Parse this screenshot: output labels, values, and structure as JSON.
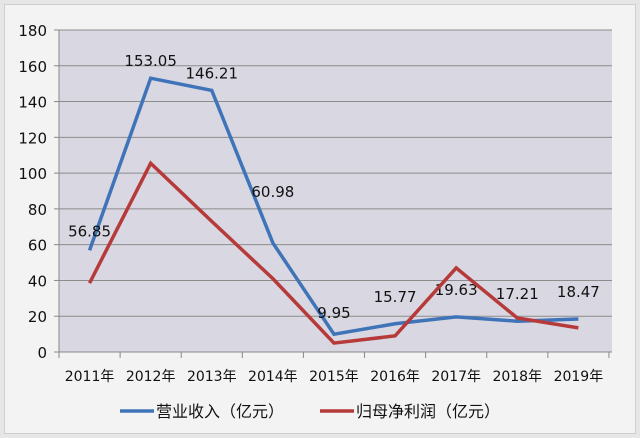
{
  "chart_data": {
    "type": "line",
    "categories": [
      "2011年",
      "2012年",
      "2013年",
      "2014年",
      "2015年",
      "2016年",
      "2017年",
      "2018年",
      "2019年"
    ],
    "ylim": [
      0,
      180
    ],
    "yticks": [
      0,
      20,
      40,
      60,
      80,
      100,
      120,
      140,
      160,
      180
    ],
    "grid": true,
    "legend_position": "bottom",
    "series": [
      {
        "name": "营业收入（亿元）",
        "color": "#3f74b8",
        "values": [
          56.85,
          153.05,
          146.21,
          60.98,
          9.95,
          15.77,
          19.63,
          17.21,
          18.47
        ],
        "labels": [
          "56.85",
          "153.05",
          "146.21",
          "60.98",
          "9.95",
          "15.77",
          "19.63",
          "17.21",
          "18.47"
        ]
      },
      {
        "name": "归母净利润（亿元）",
        "color": "#b63a3a",
        "values": [
          38.5,
          105.5,
          73,
          41,
          5,
          9,
          47,
          19,
          13.5
        ]
      }
    ]
  }
}
